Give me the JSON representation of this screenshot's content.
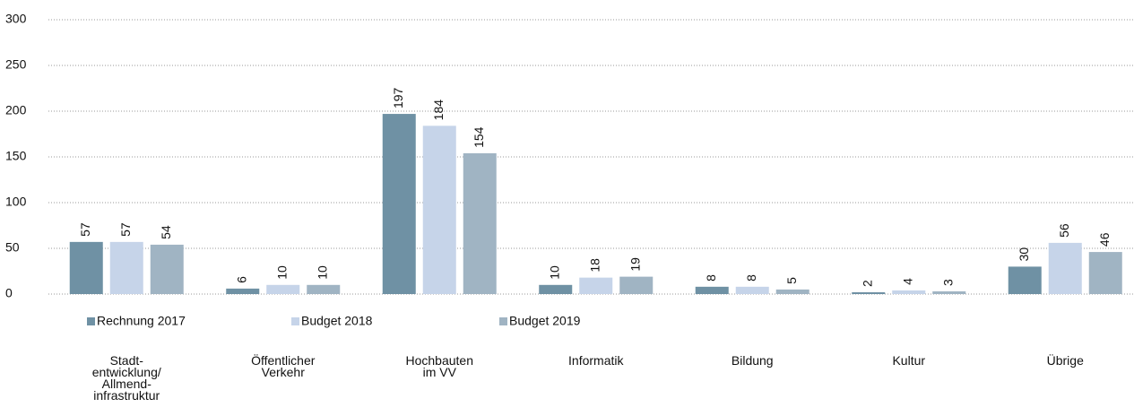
{
  "chart_data": {
    "type": "bar",
    "categories": [
      "Stadt-\nentwicklung/\nAllmend-\ninfrastruktur",
      "Öffentlicher\nVerkehr",
      "Hochbauten\nim VV",
      "Informatik",
      "Bildung",
      "Kultur",
      "Übrige"
    ],
    "series": [
      {
        "name": "Rechnung 2017",
        "color": "#6f91a4",
        "values": [
          57,
          6,
          197,
          10,
          8,
          2,
          30
        ]
      },
      {
        "name": "Budget 2018",
        "color": "#c6d4e9",
        "values": [
          57,
          10,
          184,
          18,
          8,
          4,
          56
        ]
      },
      {
        "name": "Budget 2019",
        "color": "#a0b4c3",
        "values": [
          54,
          10,
          154,
          19,
          5,
          3,
          46
        ]
      }
    ],
    "ylim": [
      0,
      300
    ],
    "yticks": [
      0,
      50,
      100,
      150,
      200,
      250,
      300
    ],
    "grid": true,
    "legend": "bottom"
  }
}
